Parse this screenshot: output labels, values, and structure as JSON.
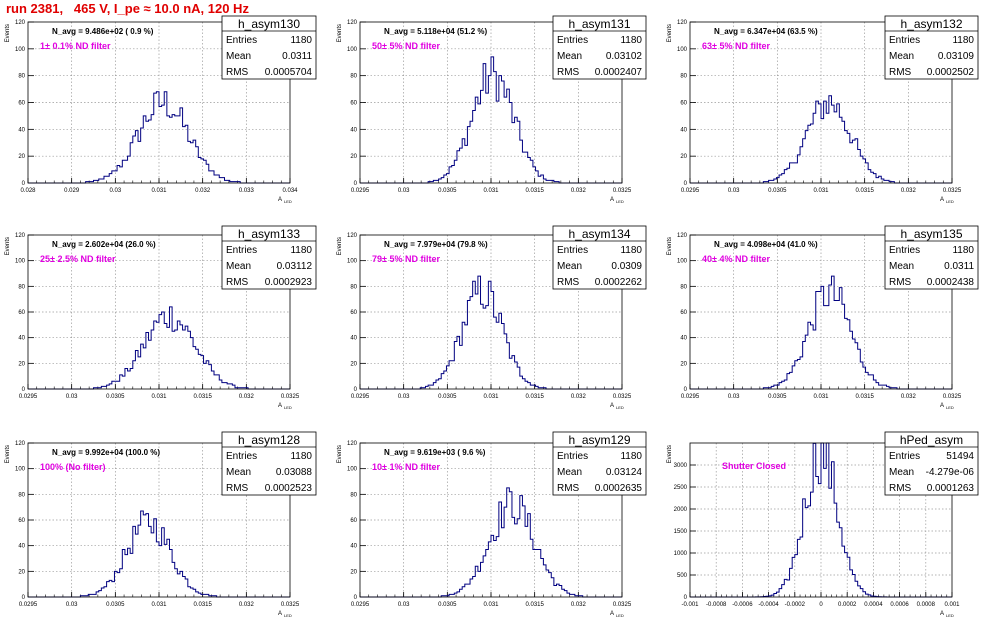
{
  "page": {
    "title": "run 2381,   465 V, I_pe ≈ 10.0 nA, 120 Hz"
  },
  "stats_labels": {
    "entries": "Entries",
    "mean": "Mean",
    "rms": "RMS"
  },
  "y_axis_label": "Events",
  "x_axis_label": "A",
  "x_axis_sub": "LED",
  "chart_data": [
    {
      "type": "histogram",
      "name": "h_asym130",
      "navg": "N_avg = 9.486e+02 ( 0.9 %)",
      "filter": "1± 0.1% ND filter",
      "entries": "1180",
      "mean": "0.0311",
      "rms": "0.0005704",
      "xlim": [
        0.028,
        0.034
      ],
      "xticks": [
        "0.028",
        "0.029",
        "0.03",
        "0.031",
        "0.032",
        "0.033",
        "0.034"
      ],
      "ylim": [
        0,
        120
      ],
      "yticks": [
        "0",
        "20",
        "40",
        "60",
        "80",
        "100",
        "120"
      ],
      "mu": 0.0311,
      "sigma": 0.00057,
      "peak": 60,
      "grid": true
    },
    {
      "type": "histogram",
      "name": "h_asym131",
      "navg": "N_avg = 5.118e+04 (51.2 %)",
      "filter": "50± 5% ND filter",
      "entries": "1180",
      "mean": "0.03102",
      "rms": "0.0002407",
      "xlim": [
        0.0295,
        0.0325
      ],
      "xticks": [
        "0.0295",
        "0.03",
        "0.0305",
        "0.031",
        "0.0315",
        "0.032",
        "0.0325"
      ],
      "ylim": [
        0,
        120
      ],
      "yticks": [
        "0",
        "20",
        "40",
        "60",
        "80",
        "100",
        "120"
      ],
      "mu": 0.03102,
      "sigma": 0.00024,
      "peak": 80,
      "grid": true
    },
    {
      "type": "histogram",
      "name": "h_asym132",
      "navg": "N_avg = 6.347e+04 (63.5 %)",
      "filter": "63± 5% ND filter",
      "entries": "1180",
      "mean": "0.03109",
      "rms": "0.0002502",
      "xlim": [
        0.0295,
        0.0325
      ],
      "xticks": [
        "0.0295",
        "0.03",
        "0.0305",
        "0.031",
        "0.0315",
        "0.032",
        "0.0325"
      ],
      "ylim": [
        0,
        120
      ],
      "yticks": [
        "0",
        "20",
        "40",
        "60",
        "80",
        "100",
        "120"
      ],
      "mu": 0.03109,
      "sigma": 0.00025,
      "peak": 60,
      "grid": true
    },
    {
      "type": "histogram",
      "name": "h_asym133",
      "navg": "N_avg = 2.602e+04 (26.0 %)",
      "filter": "25± 2.5% ND filter",
      "entries": "1180",
      "mean": "0.03112",
      "rms": "0.0002923",
      "xlim": [
        0.0295,
        0.0325
      ],
      "xticks": [
        "0.0295",
        "0.03",
        "0.0305",
        "0.031",
        "0.0315",
        "0.032",
        "0.0325"
      ],
      "ylim": [
        0,
        120
      ],
      "yticks": [
        "0",
        "20",
        "40",
        "60",
        "80",
        "100",
        "120"
      ],
      "mu": 0.03112,
      "sigma": 0.00029,
      "peak": 57,
      "grid": true
    },
    {
      "type": "histogram",
      "name": "h_asym134",
      "navg": "N_avg = 7.979e+04 (79.8 %)",
      "filter": "79± 5% ND filter",
      "entries": "1180",
      "mean": "0.0309",
      "rms": "0.0002262",
      "xlim": [
        0.0295,
        0.0325
      ],
      "xticks": [
        "0.0295",
        "0.03",
        "0.0305",
        "0.031",
        "0.0315",
        "0.032",
        "0.0325"
      ],
      "ylim": [
        0,
        120
      ],
      "yticks": [
        "0",
        "20",
        "40",
        "60",
        "80",
        "100",
        "120"
      ],
      "mu": 0.0309,
      "sigma": 0.00023,
      "peak": 76,
      "grid": true
    },
    {
      "type": "histogram",
      "name": "h_asym135",
      "navg": "N_avg = 4.098e+04 (41.0 %)",
      "filter": "40± 4% ND filter",
      "entries": "1180",
      "mean": "0.0311",
      "rms": "0.0002438",
      "xlim": [
        0.0295,
        0.0325
      ],
      "xticks": [
        "0.0295",
        "0.03",
        "0.0305",
        "0.031",
        "0.0315",
        "0.032",
        "0.0325"
      ],
      "ylim": [
        0,
        120
      ],
      "yticks": [
        "0",
        "20",
        "40",
        "60",
        "80",
        "100",
        "120"
      ],
      "mu": 0.0311,
      "sigma": 0.00024,
      "peak": 75,
      "grid": true
    },
    {
      "type": "histogram",
      "name": "h_asym128",
      "navg": "N_avg = 9.992e+04 (100.0 %)",
      "filter": "100% (No filter)",
      "entries": "1180",
      "mean": "0.03088",
      "rms": "0.0002523",
      "xlim": [
        0.0295,
        0.0325
      ],
      "xticks": [
        "0.0295",
        "0.03",
        "0.0305",
        "0.031",
        "0.0315",
        "0.032",
        "0.0325"
      ],
      "ylim": [
        0,
        120
      ],
      "yticks": [
        "0",
        "20",
        "40",
        "60",
        "80",
        "100",
        "120"
      ],
      "mu": 0.03088,
      "sigma": 0.00025,
      "peak": 58,
      "grid": true
    },
    {
      "type": "histogram",
      "name": "h_asym129",
      "navg": "N_avg = 9.619e+03 ( 9.6 %)",
      "filter": "10± 1% ND filter",
      "entries": "1180",
      "mean": "0.03124",
      "rms": "0.0002635",
      "xlim": [
        0.0295,
        0.0325
      ],
      "xticks": [
        "0.0295",
        "0.03",
        "0.0305",
        "0.031",
        "0.0315",
        "0.032",
        "0.0325"
      ],
      "ylim": [
        0,
        120
      ],
      "yticks": [
        "0",
        "20",
        "40",
        "60",
        "80",
        "100",
        "120"
      ],
      "mu": 0.03124,
      "sigma": 0.00026,
      "peak": 72,
      "grid": true
    },
    {
      "type": "histogram",
      "name": "hPed_asym",
      "navg": "",
      "filter": "Shutter Closed",
      "entries": "51494",
      "mean": "-4.279e-06",
      "rms": "0.0001263",
      "xlim": [
        -0.001,
        0.001
      ],
      "xticks": [
        "-0.001",
        "-0.0008",
        "-0.0006",
        "-0.0004",
        "-0.0002",
        "0",
        "0.0002",
        "0.0004",
        "0.0006",
        "0.0008",
        "0.001"
      ],
      "ylim": [
        0,
        3500
      ],
      "yticks": [
        "0",
        "500",
        "1000",
        "1500",
        "2000",
        "2500",
        "3000"
      ],
      "mu": 0.0,
      "sigma": 0.000126,
      "peak": 3300,
      "grid": true
    }
  ],
  "colors": {
    "hist": "#000080",
    "grid": "#9a9a9a",
    "filter": "#e000e0",
    "title": "#e00000"
  }
}
